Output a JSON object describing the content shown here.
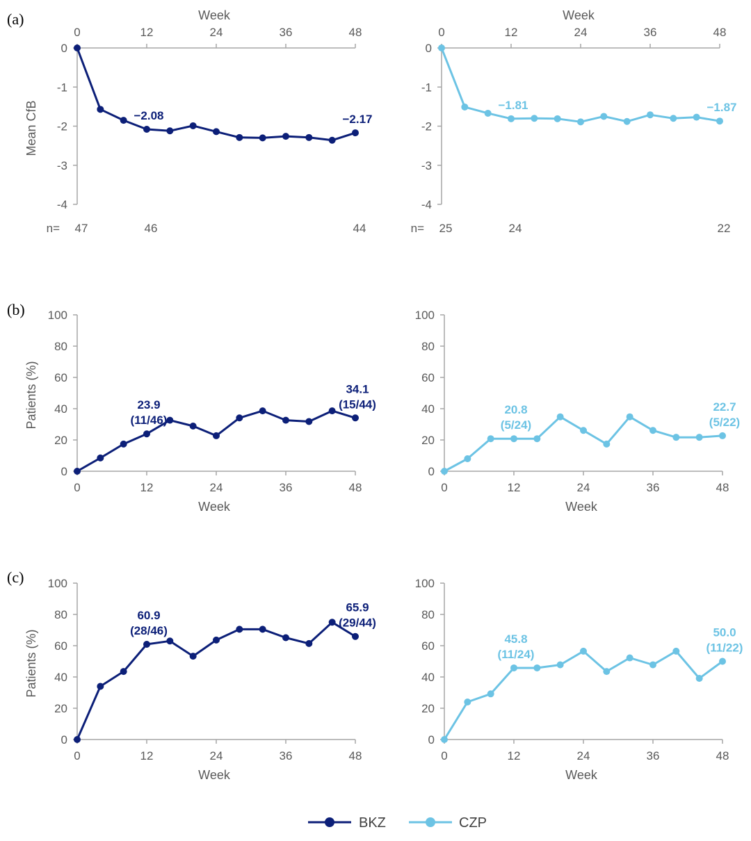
{
  "colors": {
    "BKZ": "#0c1f78",
    "CZP": "#6cc3e4"
  },
  "legend": [
    {
      "name": "BKZ",
      "color_key": "BKZ"
    },
    {
      "name": "CZP",
      "color_key": "CZP"
    }
  ],
  "chart_data": [
    {
      "panel": "(a)",
      "type": "line",
      "series_name": "BKZ",
      "color_key": "BKZ",
      "x_axis_position": "top",
      "xlabel": "Week",
      "ylabel": "Mean CfB",
      "xlim": [
        0,
        48
      ],
      "ylim": [
        -4,
        0
      ],
      "xticks": [
        0,
        12,
        24,
        36,
        48
      ],
      "yticks": [
        0,
        -1,
        -2,
        -3,
        -4
      ],
      "x": [
        0,
        4,
        8,
        12,
        16,
        20,
        24,
        28,
        32,
        36,
        40,
        44,
        48
      ],
      "y": [
        0,
        -1.57,
        -1.85,
        -2.08,
        -2.12,
        -1.99,
        -2.14,
        -2.29,
        -2.3,
        -2.26,
        -2.29,
        -2.36,
        -2.17
      ],
      "n_prefix": "n=",
      "n_values": [
        {
          "x": 0,
          "text": "47"
        },
        {
          "x": 12,
          "text": "46"
        },
        {
          "x": 48,
          "text": "44"
        }
      ],
      "annotations": [
        {
          "x": 12,
          "y": -2.08,
          "lines": [
            "−2.08"
          ]
        },
        {
          "x": 48,
          "y": -2.17,
          "lines": [
            "−2.17"
          ]
        }
      ]
    },
    {
      "panel": "",
      "type": "line",
      "series_name": "CZP",
      "color_key": "CZP",
      "x_axis_position": "top",
      "xlabel": "Week",
      "ylabel": "",
      "xlim": [
        0,
        48
      ],
      "ylim": [
        -4,
        0
      ],
      "xticks": [
        0,
        12,
        24,
        36,
        48
      ],
      "yticks": [
        0,
        -1,
        -2,
        -3,
        -4
      ],
      "x": [
        0,
        4,
        8,
        12,
        16,
        20,
        24,
        28,
        32,
        36,
        40,
        44,
        48
      ],
      "y": [
        0,
        -1.51,
        -1.67,
        -1.81,
        -1.8,
        -1.81,
        -1.89,
        -1.75,
        -1.88,
        -1.71,
        -1.8,
        -1.77,
        -1.87
      ],
      "n_prefix": "n=",
      "n_values": [
        {
          "x": 0,
          "text": "25"
        },
        {
          "x": 12,
          "text": "24"
        },
        {
          "x": 48,
          "text": "22"
        }
      ],
      "annotations": [
        {
          "x": 12,
          "y": -1.81,
          "lines": [
            "−1.81"
          ]
        },
        {
          "x": 48,
          "y": -1.87,
          "lines": [
            "−1.87"
          ]
        }
      ]
    },
    {
      "panel": "(b)",
      "type": "line",
      "series_name": "BKZ",
      "color_key": "BKZ",
      "x_axis_position": "bottom",
      "xlabel": "Week",
      "ylabel": "Patients (%)",
      "xlim": [
        0,
        48
      ],
      "ylim": [
        0,
        100
      ],
      "xticks": [
        0,
        12,
        24,
        36,
        48
      ],
      "yticks": [
        0,
        20,
        40,
        60,
        80,
        100
      ],
      "x": [
        0,
        4,
        8,
        12,
        16,
        20,
        24,
        28,
        32,
        36,
        40,
        44,
        48
      ],
      "y": [
        0,
        8.5,
        17.4,
        23.9,
        32.6,
        28.9,
        22.7,
        34.1,
        38.6,
        32.6,
        31.8,
        38.6,
        34.1
      ],
      "annotations": [
        {
          "x": 12,
          "y": 23.9,
          "lines": [
            "23.9",
            "(11/46)"
          ]
        },
        {
          "x": 48,
          "y": 34.1,
          "lines": [
            "34.1",
            "(15/44)"
          ]
        }
      ]
    },
    {
      "panel": "",
      "type": "line",
      "series_name": "CZP",
      "color_key": "CZP",
      "x_axis_position": "bottom",
      "xlabel": "Week",
      "ylabel": "",
      "xlim": [
        0,
        48
      ],
      "ylim": [
        0,
        100
      ],
      "xticks": [
        0,
        12,
        24,
        36,
        48
      ],
      "yticks": [
        0,
        20,
        40,
        60,
        80,
        100
      ],
      "x": [
        0,
        4,
        8,
        12,
        16,
        20,
        24,
        28,
        32,
        36,
        40,
        44,
        48
      ],
      "y": [
        0,
        8.0,
        20.8,
        20.8,
        20.8,
        34.8,
        26.1,
        17.4,
        34.8,
        26.1,
        21.7,
        21.7,
        22.7
      ],
      "annotations": [
        {
          "x": 12,
          "y": 20.8,
          "lines": [
            "20.8",
            "(5/24)"
          ]
        },
        {
          "x": 48,
          "y": 22.7,
          "lines": [
            "22.7",
            "(5/22)"
          ]
        }
      ]
    },
    {
      "panel": "(c)",
      "type": "line",
      "series_name": "BKZ",
      "color_key": "BKZ",
      "x_axis_position": "bottom",
      "xlabel": "Week",
      "ylabel": "Patients (%)",
      "xlim": [
        0,
        48
      ],
      "ylim": [
        0,
        100
      ],
      "xticks": [
        0,
        12,
        24,
        36,
        48
      ],
      "yticks": [
        0,
        20,
        40,
        60,
        80,
        100
      ],
      "x": [
        0,
        4,
        8,
        12,
        16,
        20,
        24,
        28,
        32,
        36,
        40,
        44,
        48
      ],
      "y": [
        0,
        34.0,
        43.5,
        60.9,
        63.0,
        53.3,
        63.6,
        70.5,
        70.5,
        65.1,
        61.4,
        75.0,
        65.9
      ],
      "annotations": [
        {
          "x": 12,
          "y": 60.9,
          "lines": [
            "60.9",
            "(28/46)"
          ]
        },
        {
          "x": 48,
          "y": 65.9,
          "lines": [
            "65.9",
            "(29/44)"
          ]
        }
      ]
    },
    {
      "panel": "",
      "type": "line",
      "series_name": "CZP",
      "color_key": "CZP",
      "x_axis_position": "bottom",
      "xlabel": "Week",
      "ylabel": "",
      "xlim": [
        0,
        48
      ],
      "ylim": [
        0,
        100
      ],
      "xticks": [
        0,
        12,
        24,
        36,
        48
      ],
      "yticks": [
        0,
        20,
        40,
        60,
        80,
        100
      ],
      "x": [
        0,
        4,
        8,
        12,
        16,
        20,
        24,
        28,
        32,
        36,
        40,
        44,
        48
      ],
      "y": [
        0,
        24.0,
        29.2,
        45.8,
        45.8,
        47.8,
        56.5,
        43.5,
        52.2,
        47.8,
        56.5,
        39.1,
        50.0
      ],
      "annotations": [
        {
          "x": 12,
          "y": 45.8,
          "lines": [
            "45.8",
            "(11/24)"
          ]
        },
        {
          "x": 48,
          "y": 50.0,
          "lines": [
            "50.0",
            "(11/22)"
          ]
        }
      ]
    }
  ]
}
